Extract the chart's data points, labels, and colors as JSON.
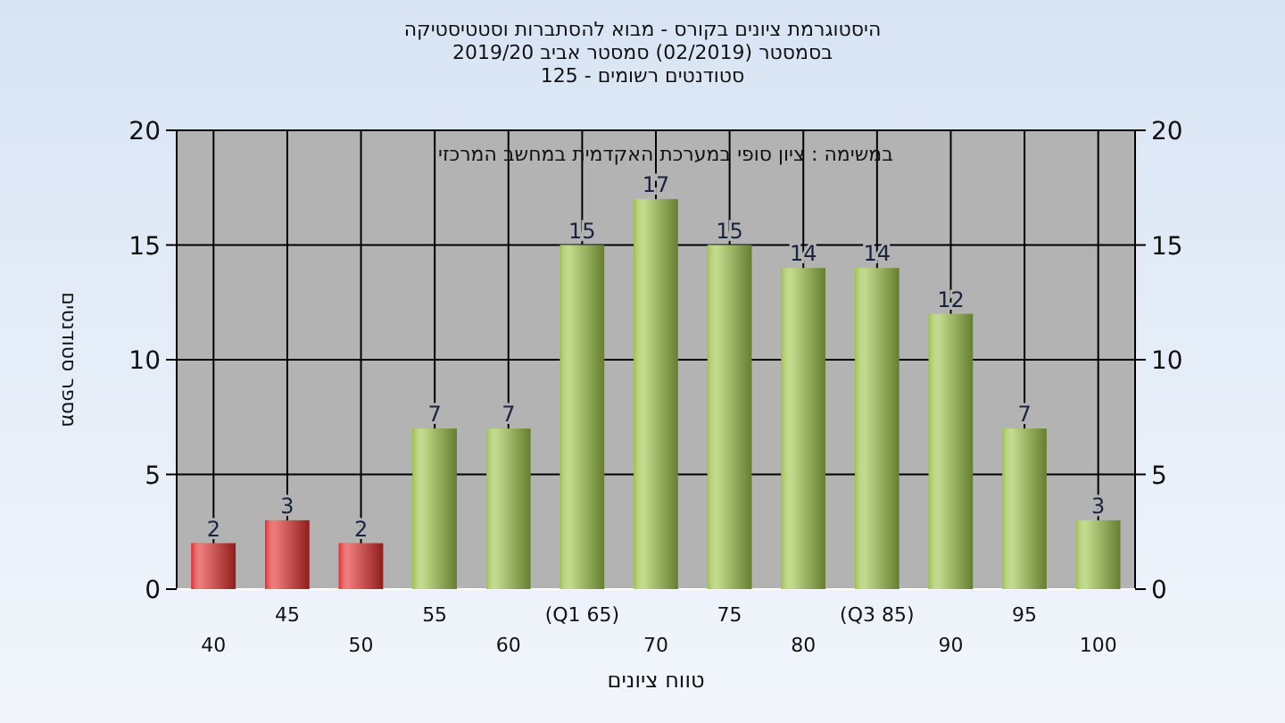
{
  "chart_data": {
    "type": "bar",
    "title": "היסטוגרמת ציונים בקורס - מבוא להסתברות וסטטיסטיקה",
    "subtitle": "בסמסטר  (02/2019)  סמסטר אביב 2019/20",
    "annotations": [
      "סטודנטים רשומים - 125",
      "במשימה : ציון סופי במערכת האקדמית במחשב המרכזי"
    ],
    "xlabel": "טווח ציונים",
    "ylabel": "מספר סטודנטים",
    "categories": [
      "40",
      "45",
      "50",
      "55",
      "60",
      "(Q1 65)",
      "70",
      "75",
      "80",
      "(Q3 85)",
      "90",
      "95",
      "100"
    ],
    "values": [
      2,
      3,
      2,
      7,
      7,
      15,
      17,
      15,
      14,
      14,
      12,
      7,
      3
    ],
    "colors": [
      "#e02c2c",
      "#e02c2c",
      "#e02c2c",
      "#9cc24a",
      "#9cc24a",
      "#9cc24a",
      "#9cc24a",
      "#9cc24a",
      "#9cc24a",
      "#9cc24a",
      "#9cc24a",
      "#9cc24a",
      "#9cc24a"
    ],
    "ylim": [
      0,
      20
    ],
    "yticks": [
      0,
      5,
      10,
      15,
      20
    ],
    "y2lim": [
      0,
      20
    ],
    "y2ticks": [
      0,
      5,
      10,
      15,
      20
    ],
    "grid": true,
    "data_labels": true
  }
}
